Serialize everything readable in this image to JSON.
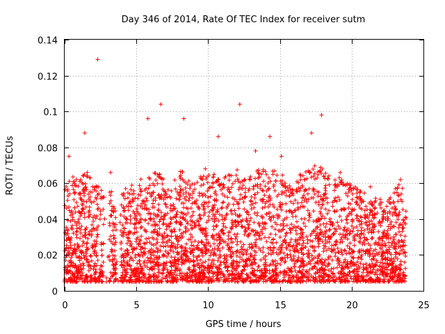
{
  "chart_data": {
    "type": "scatter",
    "title": "Day 346 of 2014, Rate Of TEC Index for receiver sutm",
    "xlabel": "GPS time / hours",
    "ylabel": "ROTI / TECUs",
    "xlim": [
      0,
      25
    ],
    "ylim": [
      0,
      0.14
    ],
    "xticks": [
      "0",
      "5",
      "10",
      "15",
      "20",
      "25"
    ],
    "yticks": [
      "0",
      "0.02",
      "0.04",
      "0.06",
      "0.08",
      "0.1",
      "0.12",
      "0.14"
    ],
    "grid": true,
    "marker": "+",
    "colors": {
      "series": "#ff0000",
      "grid": "#a0a0a0",
      "axis": "#000000"
    },
    "series": [
      {
        "name": "",
        "highlights": [
          [
            2.3,
            0.129
          ],
          [
            6.7,
            0.104
          ],
          [
            12.2,
            0.104
          ],
          [
            17.9,
            0.098
          ],
          [
            5.8,
            0.096
          ],
          [
            8.3,
            0.096
          ],
          [
            1.4,
            0.088
          ],
          [
            14.3,
            0.086
          ],
          [
            10.7,
            0.086
          ],
          [
            17.2,
            0.088
          ],
          [
            0.3,
            0.075
          ],
          [
            13.3,
            0.078
          ],
          [
            15.1,
            0.075
          ],
          [
            3.2,
            0.066
          ],
          [
            9.8,
            0.068
          ],
          [
            19.2,
            0.066
          ],
          [
            23.4,
            0.062
          ],
          [
            21.3,
            0.058
          ]
        ],
        "envelope": [
          [
            0.0,
            0.058
          ],
          [
            0.5,
            0.066
          ],
          [
            1.0,
            0.06
          ],
          [
            1.5,
            0.07
          ],
          [
            2.0,
            0.062
          ],
          [
            2.6,
            0.058
          ],
          [
            3.0,
            0.062
          ],
          [
            3.5,
            0.05
          ],
          [
            4.0,
            0.054
          ],
          [
            4.5,
            0.06
          ],
          [
            5.0,
            0.058
          ],
          [
            5.5,
            0.066
          ],
          [
            6.0,
            0.064
          ],
          [
            6.5,
            0.068
          ],
          [
            7.0,
            0.062
          ],
          [
            7.5,
            0.06
          ],
          [
            8.0,
            0.068
          ],
          [
            8.5,
            0.064
          ],
          [
            9.0,
            0.06
          ],
          [
            9.5,
            0.064
          ],
          [
            10.0,
            0.066
          ],
          [
            10.5,
            0.068
          ],
          [
            11.0,
            0.064
          ],
          [
            11.5,
            0.066
          ],
          [
            12.0,
            0.068
          ],
          [
            12.5,
            0.062
          ],
          [
            13.0,
            0.064
          ],
          [
            13.5,
            0.068
          ],
          [
            14.0,
            0.07
          ],
          [
            14.5,
            0.068
          ],
          [
            15.0,
            0.066
          ],
          [
            15.5,
            0.064
          ],
          [
            16.0,
            0.062
          ],
          [
            16.5,
            0.066
          ],
          [
            17.0,
            0.068
          ],
          [
            17.5,
            0.07
          ],
          [
            18.0,
            0.07
          ],
          [
            18.5,
            0.066
          ],
          [
            19.0,
            0.064
          ],
          [
            19.5,
            0.062
          ],
          [
            20.0,
            0.06
          ],
          [
            20.5,
            0.056
          ],
          [
            21.0,
            0.054
          ],
          [
            21.5,
            0.052
          ],
          [
            22.0,
            0.052
          ],
          [
            22.5,
            0.05
          ],
          [
            23.0,
            0.058
          ],
          [
            23.5,
            0.06
          ],
          [
            23.8,
            0.048
          ]
        ],
        "gaps": [
          [
            2.7,
            3.1
          ],
          [
            3.6,
            3.9
          ]
        ],
        "x_range": [
          0.0,
          23.8
        ],
        "floor": 0.005
      }
    ]
  }
}
